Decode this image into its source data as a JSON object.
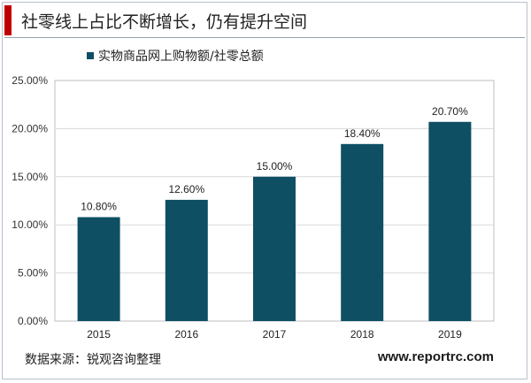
{
  "header": {
    "title": "社零线上占比不断增长，仍有提升空间"
  },
  "footer": {
    "source": "数据来源：锐观咨询整理",
    "website": "www.reportrc.com"
  },
  "colors": {
    "bar": "#0e4f64",
    "title_accent": "#c00000",
    "grid": "#d9d9d9"
  },
  "chart_data": {
    "type": "bar",
    "categories": [
      "2015",
      "2016",
      "2017",
      "2018",
      "2019"
    ],
    "series": [
      {
        "name": "实物商品网上购物额/社零总额",
        "values": [
          10.8,
          12.6,
          15.0,
          18.4,
          20.7
        ]
      }
    ],
    "data_labels": [
      "10.80%",
      "12.60%",
      "15.00%",
      "18.40%",
      "20.70%"
    ],
    "y_ticks": [
      "0.00%",
      "5.00%",
      "10.00%",
      "15.00%",
      "20.00%",
      "25.00%"
    ],
    "ylim": [
      0,
      25
    ],
    "grid": true,
    "legend": "top-left",
    "title": "",
    "xlabel": "",
    "ylabel": ""
  }
}
